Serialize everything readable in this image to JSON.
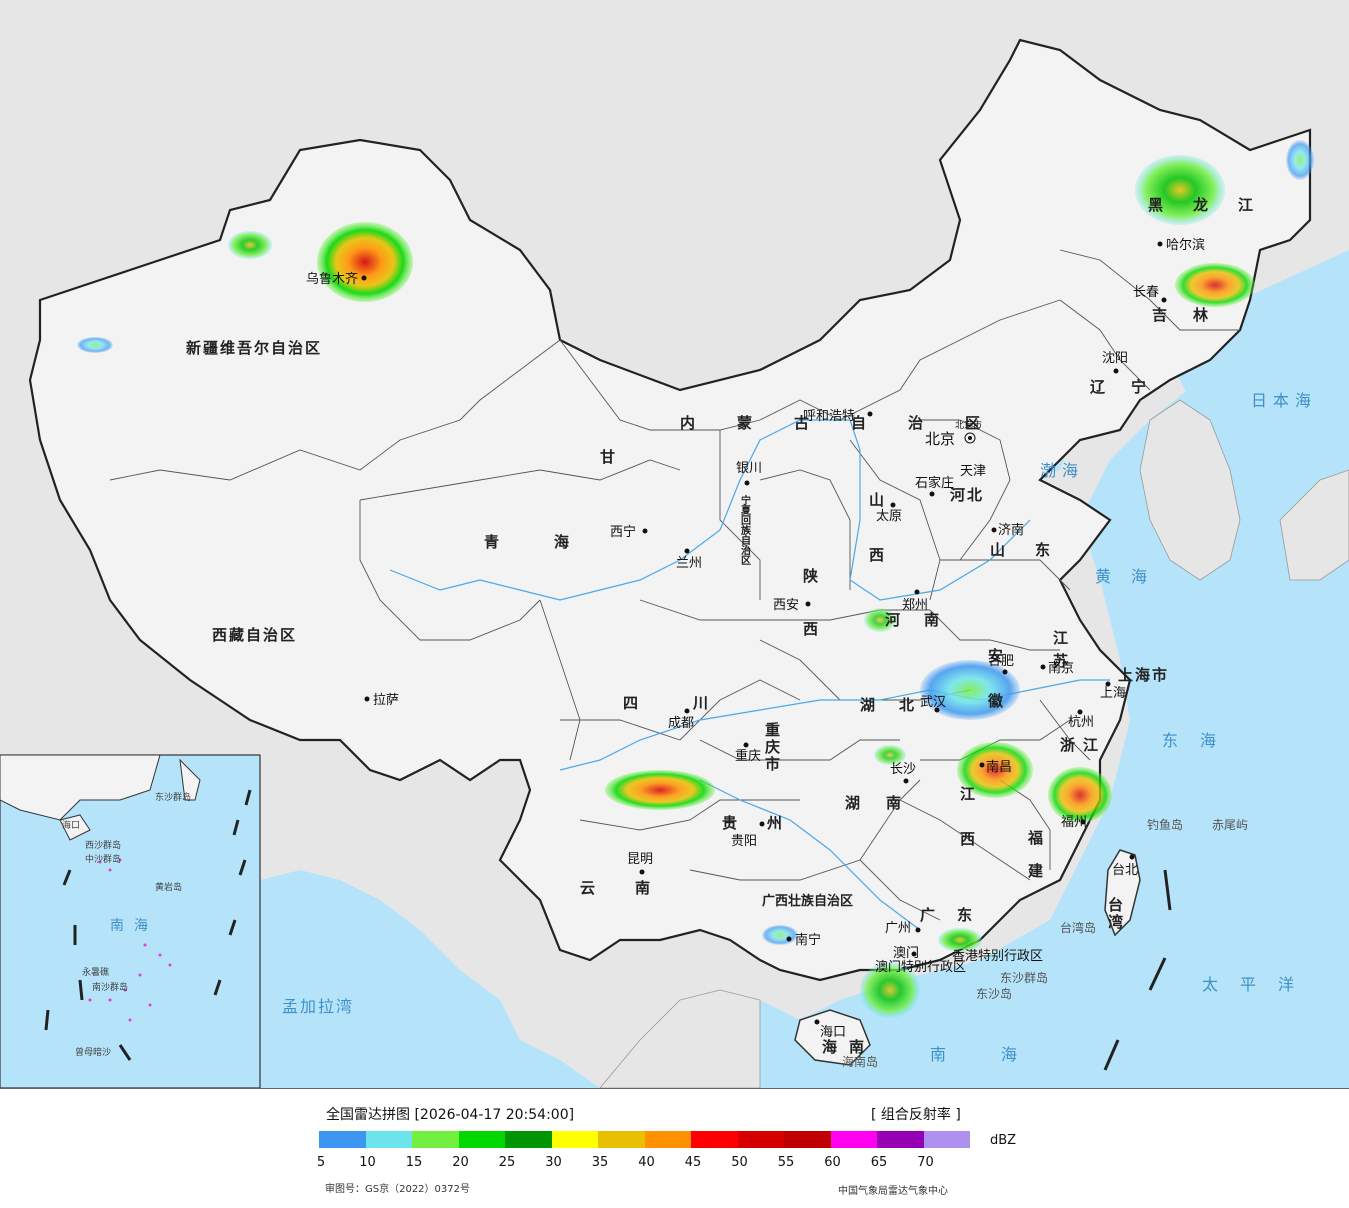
{
  "map": {
    "provinces": [
      {
        "id": "xinjiang",
        "text": "新疆维吾尔自治区"
      },
      {
        "id": "xizang",
        "text": "西藏自治区"
      },
      {
        "id": "qinghai",
        "text": "青海"
      },
      {
        "id": "gansu",
        "text": "甘"
      },
      {
        "id": "neimenggu",
        "text": "内蒙古自治区"
      },
      {
        "id": "heilongjiang",
        "text": "黑龙江"
      },
      {
        "id": "jilin",
        "text": "吉林"
      },
      {
        "id": "liaoning",
        "text": "辽宁"
      },
      {
        "id": "hebei",
        "text": "河北"
      },
      {
        "id": "shanxi",
        "text": "山西"
      },
      {
        "id": "shaanxi",
        "text": "陕西"
      },
      {
        "id": "ningxia",
        "text": "宁夏回族自治区"
      },
      {
        "id": "shandong",
        "text": "山东"
      },
      {
        "id": "henan",
        "text": "河南"
      },
      {
        "id": "jiangsu",
        "text": "江苏"
      },
      {
        "id": "anhui",
        "text": "安徽"
      },
      {
        "id": "shanghai",
        "text": "上海市"
      },
      {
        "id": "zhejiang",
        "text": "浙江"
      },
      {
        "id": "hubei",
        "text": "湖北"
      },
      {
        "id": "sichuan",
        "text": "四川"
      },
      {
        "id": "chongqing",
        "text": "重庆市"
      },
      {
        "id": "guizhou",
        "text": "贵州"
      },
      {
        "id": "yunnan",
        "text": "云南"
      },
      {
        "id": "hunan",
        "text": "湖南"
      },
      {
        "id": "jiangxi",
        "text": "江西"
      },
      {
        "id": "fujian",
        "text": "福建"
      },
      {
        "id": "guangdong",
        "text": "广东"
      },
      {
        "id": "guangxi",
        "text": "广西壮族自治区"
      },
      {
        "id": "hainan",
        "text": "海南"
      },
      {
        "id": "taiwan",
        "text": "台湾"
      },
      {
        "id": "beijing",
        "text": "北京市"
      },
      {
        "id": "tianjin",
        "text": "天津"
      },
      {
        "id": "hongkong",
        "text": "香港特别行政区"
      },
      {
        "id": "macau",
        "text": "澳门特别行政区"
      }
    ],
    "cities": [
      {
        "id": "urumqi",
        "text": "乌鲁木齐"
      },
      {
        "id": "harbin",
        "text": "哈尔滨"
      },
      {
        "id": "changchun",
        "text": "长春"
      },
      {
        "id": "shenyang",
        "text": "沈阳"
      },
      {
        "id": "hohhot",
        "text": "呼和浩特"
      },
      {
        "id": "beijing",
        "text": "北京"
      },
      {
        "id": "shijiazhuang",
        "text": "石家庄"
      },
      {
        "id": "taiyuan",
        "text": "太原"
      },
      {
        "id": "jinan",
        "text": "济南"
      },
      {
        "id": "yinchuan",
        "text": "银川"
      },
      {
        "id": "xining",
        "text": "西宁"
      },
      {
        "id": "lanzhou",
        "text": "兰州"
      },
      {
        "id": "xian",
        "text": "西安"
      },
      {
        "id": "zhengzhou",
        "text": "郑州"
      },
      {
        "id": "hefei",
        "text": "合肥"
      },
      {
        "id": "nanjing",
        "text": "南京"
      },
      {
        "id": "shanghai",
        "text": "上海"
      },
      {
        "id": "hangzhou",
        "text": "杭州"
      },
      {
        "id": "wuhan",
        "text": "武汉"
      },
      {
        "id": "chengdu",
        "text": "成都"
      },
      {
        "id": "chongqing",
        "text": "重庆"
      },
      {
        "id": "lhasa",
        "text": "拉萨"
      },
      {
        "id": "changsha",
        "text": "长沙"
      },
      {
        "id": "nanchang",
        "text": "南昌"
      },
      {
        "id": "fuzhou",
        "text": "福州"
      },
      {
        "id": "guiyang",
        "text": "贵阳"
      },
      {
        "id": "kunming",
        "text": "昆明"
      },
      {
        "id": "nanning",
        "text": "南宁"
      },
      {
        "id": "guangzhou",
        "text": "广州"
      },
      {
        "id": "macau",
        "text": "澳门"
      },
      {
        "id": "haikou",
        "text": "海口"
      },
      {
        "id": "taipei",
        "text": "台北"
      }
    ],
    "seas": [
      {
        "id": "japan-sea",
        "text": "日本海"
      },
      {
        "id": "bohai",
        "text": "渤海"
      },
      {
        "id": "yellow-sea",
        "text": "黄海"
      },
      {
        "id": "east-sea",
        "text": "东海"
      },
      {
        "id": "pacific",
        "text": "太平洋"
      },
      {
        "id": "south-sea",
        "text": "南海"
      },
      {
        "id": "bay-of-bengal",
        "text": "孟加拉湾"
      }
    ],
    "islands": [
      {
        "id": "diaoyu",
        "text": "钓鱼岛"
      },
      {
        "id": "chiwei",
        "text": "赤尾屿"
      },
      {
        "id": "taiwan-island",
        "text": "台湾岛"
      },
      {
        "id": "dongsha-islands",
        "text": "东沙群岛"
      },
      {
        "id": "dongsha-island",
        "text": "东沙岛"
      },
      {
        "id": "hainan-island",
        "text": "海南岛"
      }
    ],
    "inset": {
      "labels": [
        "西沙群岛",
        "中沙群岛",
        "黄岩岛",
        "南海",
        "永暑礁",
        "南沙群岛",
        "曾母暗沙",
        "东沙群岛",
        "海口"
      ]
    }
  },
  "legend": {
    "title": "全国雷达拼图 [2026-04-17 20:54:00]",
    "product": "[ 组合反射率 ]",
    "unit": "dBZ",
    "ticks": [
      "5",
      "10",
      "15",
      "20",
      "25",
      "30",
      "35",
      "40",
      "45",
      "50",
      "55",
      "60",
      "65",
      "70"
    ],
    "colors": [
      "#3d97f0",
      "#6ce4eb",
      "#71f040",
      "#00d800",
      "#009600",
      "#ffff00",
      "#e8c000",
      "#ff9000",
      "#ff0000",
      "#d70000",
      "#c00000",
      "#ff00f0",
      "#9600b4",
      "#ad90f0"
    ],
    "approval": "审图号：GS京（2022）0372号",
    "org": "中国气象局雷达气象中心"
  }
}
